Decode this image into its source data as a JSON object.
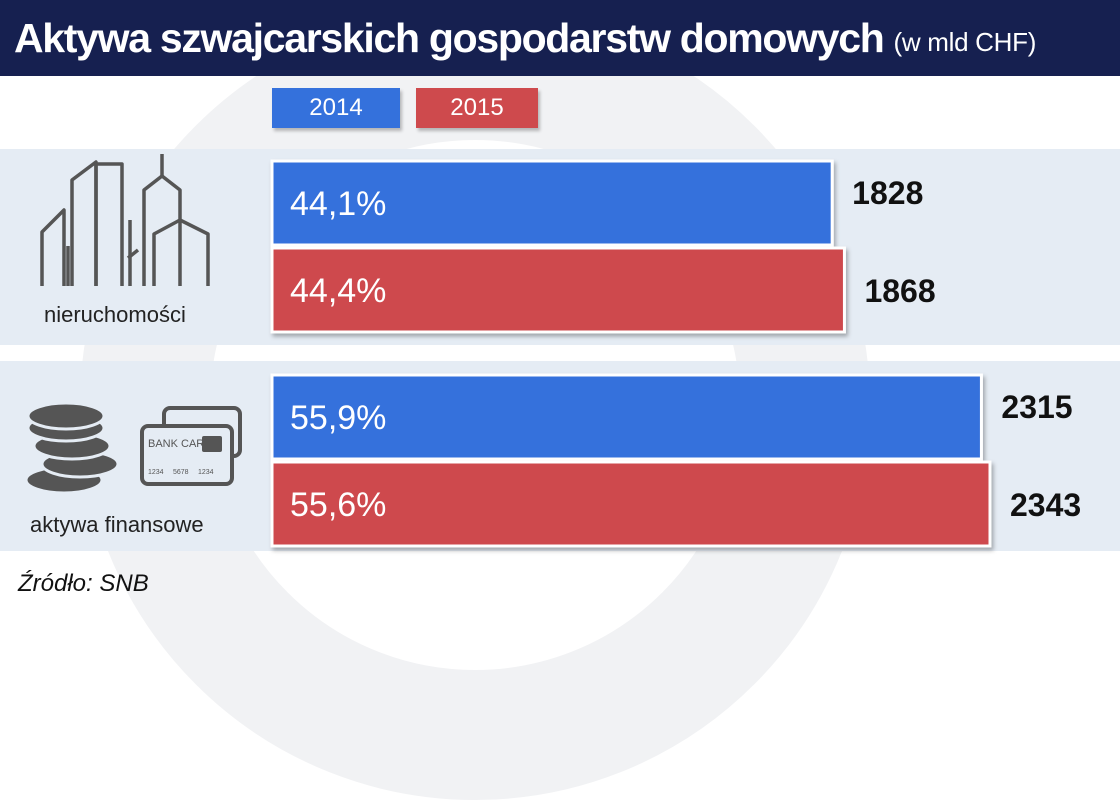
{
  "header": {
    "title": "Aktywa szwajcarskich gospodarstw domowych",
    "subtitle": "(w mld CHF)"
  },
  "legend": [
    "2014",
    "2015"
  ],
  "source": "Źródło: SNB",
  "colors": {
    "header_bg": "#162050",
    "band_bg": "#e5ecf4",
    "series_2014": "#3471dc",
    "series_2015": "#ce4a4d"
  },
  "icons": {
    "nieruchomosci": "city-buildings-icon",
    "aktywa_finansowe": "coins-and-bank-card-icon"
  },
  "card_text": {
    "brand": "BANK CARD",
    "numbers": [
      "1234",
      "5678",
      "1234"
    ]
  },
  "chart_data": {
    "type": "bar",
    "orientation": "horizontal",
    "categories": [
      "nieruchomości",
      "aktywa finansowe"
    ],
    "series": [
      {
        "name": "2014",
        "values": [
          1828,
          2315
        ],
        "shares": [
          "44,1%",
          "55,9%"
        ]
      },
      {
        "name": "2015",
        "values": [
          1868,
          2343
        ],
        "shares": [
          "44,4%",
          "55,6%"
        ]
      }
    ],
    "title": "Aktywa szwajcarskich gospodarstw domowych",
    "unit": "(w mld CHF)",
    "legend_position": "top",
    "grid": false
  }
}
